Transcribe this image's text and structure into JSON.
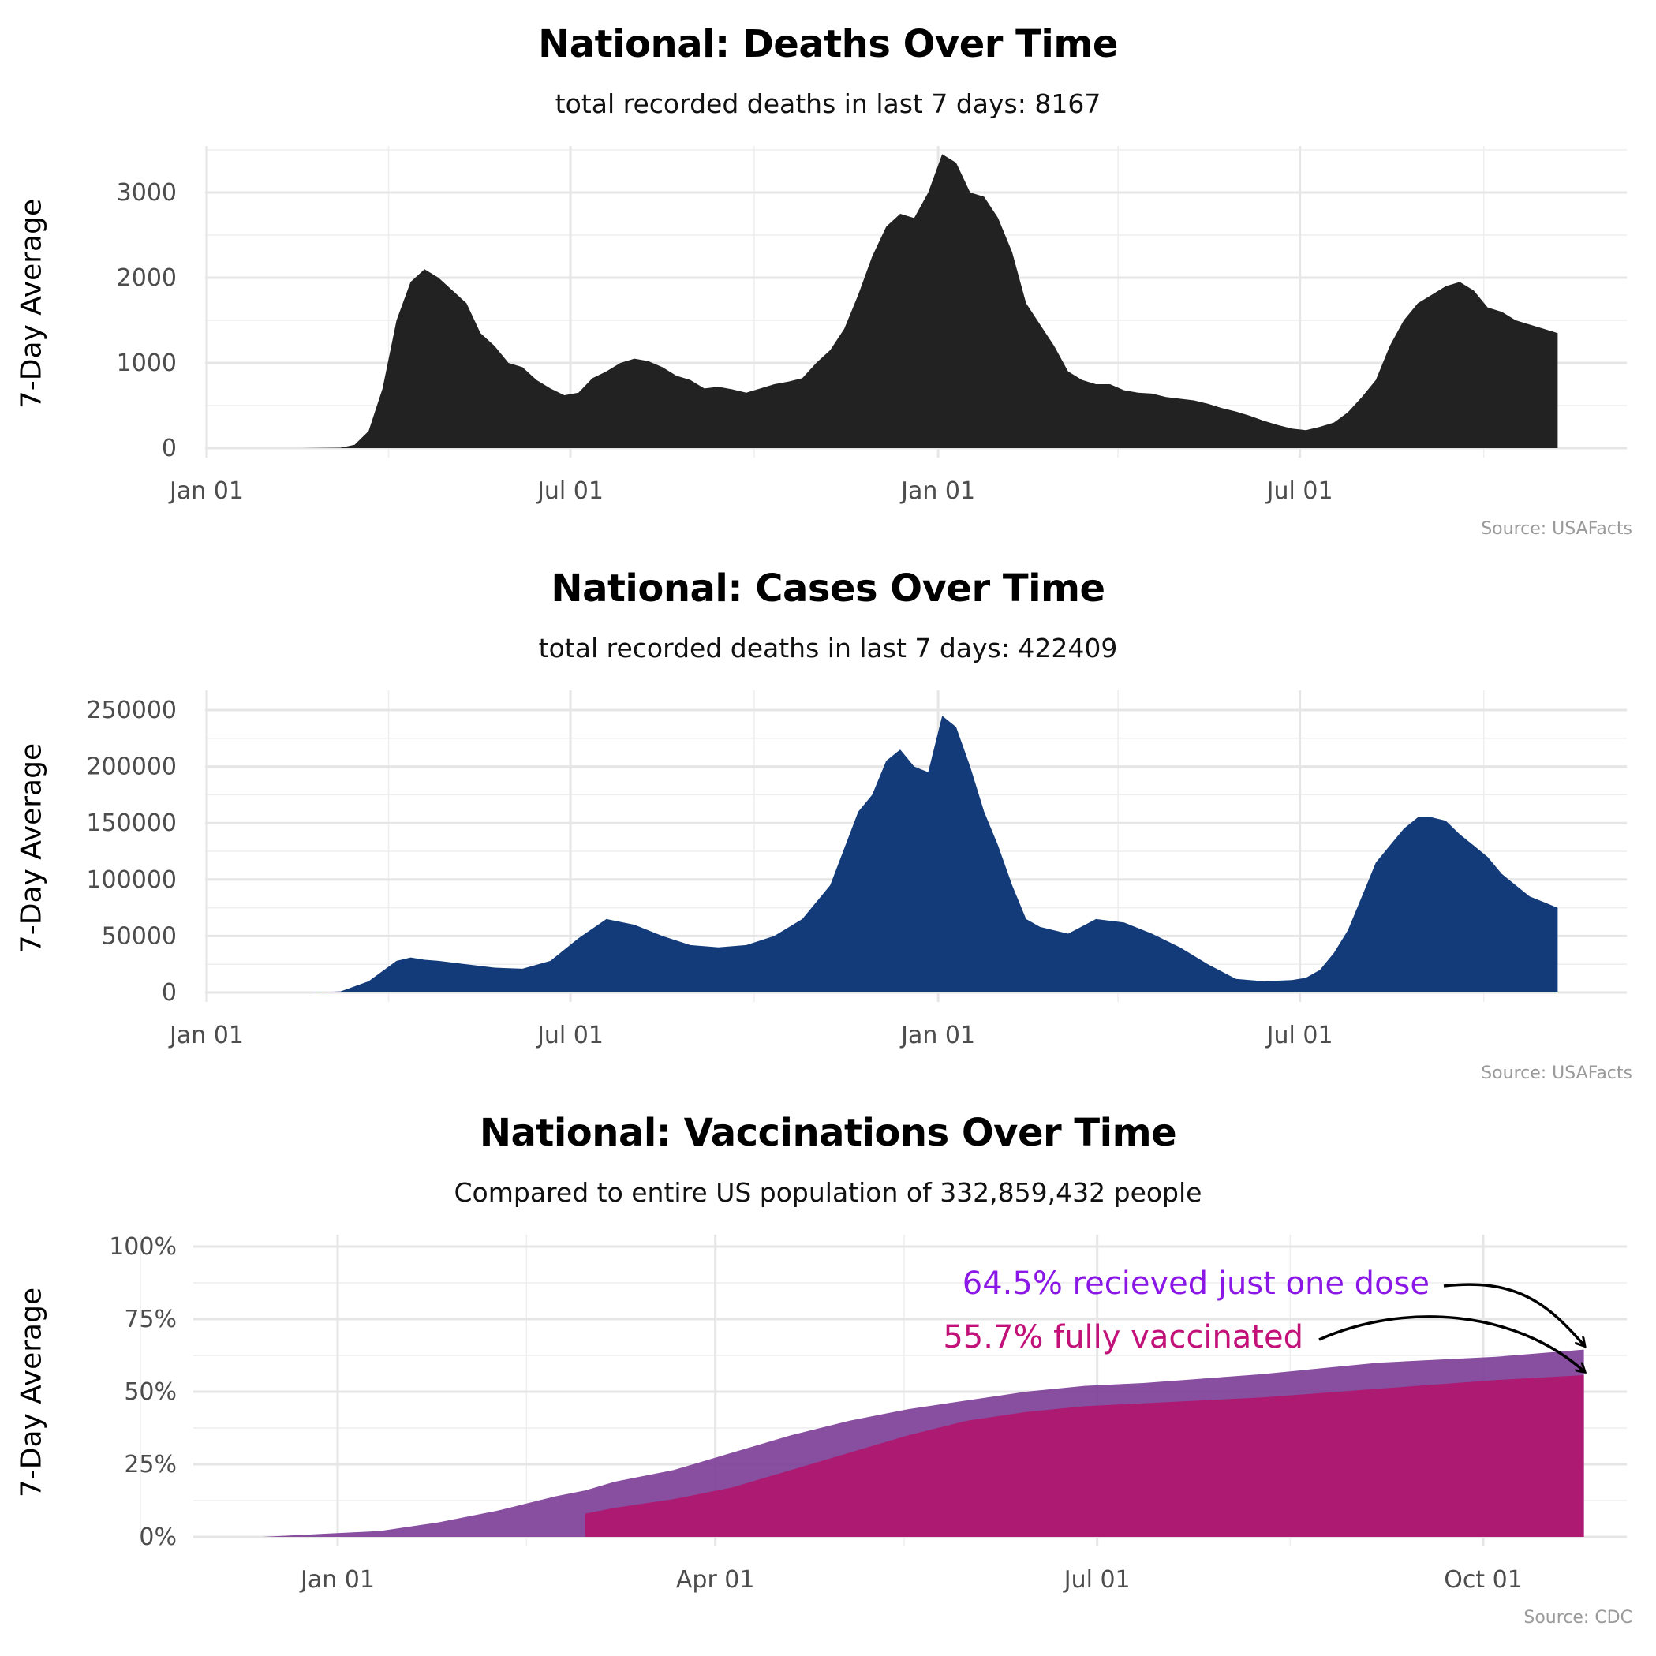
{
  "chart_data": [
    {
      "type": "area",
      "title": "National: Deaths Over Time",
      "subtitle": "total recorded deaths in last 7 days: 8167",
      "ylabel": "7-Day Average",
      "xlabel": "",
      "source": "Source: USAFacts",
      "color": "#222222",
      "x_ticks": [
        "Jan 01",
        "Jul 01",
        "Jan 01",
        "Jul 01"
      ],
      "x_range": [
        "2020-01-01",
        "2021-11-10"
      ],
      "y_ticks": [
        "0",
        "1000",
        "2000",
        "3000"
      ],
      "ylim": [
        0,
        3500
      ],
      "grid": true,
      "x": [
        "2020-01-01",
        "2020-02-15",
        "2020-03-08",
        "2020-03-15",
        "2020-03-22",
        "2020-03-29",
        "2020-04-05",
        "2020-04-12",
        "2020-04-19",
        "2020-04-26",
        "2020-05-03",
        "2020-05-10",
        "2020-05-17",
        "2020-05-24",
        "2020-05-31",
        "2020-06-07",
        "2020-06-14",
        "2020-06-21",
        "2020-06-28",
        "2020-07-05",
        "2020-07-12",
        "2020-07-19",
        "2020-07-26",
        "2020-08-02",
        "2020-08-09",
        "2020-08-16",
        "2020-08-23",
        "2020-08-30",
        "2020-09-06",
        "2020-09-13",
        "2020-09-20",
        "2020-09-27",
        "2020-10-04",
        "2020-10-11",
        "2020-10-18",
        "2020-10-25",
        "2020-11-01",
        "2020-11-08",
        "2020-11-15",
        "2020-11-22",
        "2020-11-29",
        "2020-12-06",
        "2020-12-13",
        "2020-12-20",
        "2020-12-27",
        "2021-01-03",
        "2021-01-10",
        "2021-01-17",
        "2021-01-24",
        "2021-01-31",
        "2021-02-07",
        "2021-02-14",
        "2021-02-21",
        "2021-02-28",
        "2021-03-07",
        "2021-03-14",
        "2021-03-21",
        "2021-03-28",
        "2021-04-04",
        "2021-04-11",
        "2021-04-18",
        "2021-04-25",
        "2021-05-02",
        "2021-05-09",
        "2021-05-16",
        "2021-05-23",
        "2021-05-30",
        "2021-06-06",
        "2021-06-13",
        "2021-06-20",
        "2021-06-27",
        "2021-07-04",
        "2021-07-11",
        "2021-07-18",
        "2021-07-25",
        "2021-08-01",
        "2021-08-08",
        "2021-08-15",
        "2021-08-22",
        "2021-08-29",
        "2021-09-05",
        "2021-09-12",
        "2021-09-19",
        "2021-09-26",
        "2021-10-03",
        "2021-10-10",
        "2021-10-17",
        "2021-10-24",
        "2021-10-31",
        "2021-11-07"
      ],
      "values": [
        0,
        0,
        5,
        40,
        200,
        700,
        1500,
        1950,
        2100,
        2000,
        1850,
        1700,
        1350,
        1200,
        1000,
        950,
        800,
        700,
        620,
        650,
        820,
        900,
        1000,
        1050,
        1020,
        950,
        850,
        800,
        700,
        720,
        690,
        650,
        700,
        750,
        780,
        820,
        1000,
        1150,
        1400,
        1800,
        2250,
        2600,
        2750,
        2700,
        3000,
        3450,
        3350,
        3000,
        2950,
        2700,
        2300,
        1700,
        1450,
        1200,
        900,
        800,
        750,
        750,
        680,
        650,
        640,
        600,
        580,
        560,
        520,
        470,
        430,
        380,
        320,
        270,
        230,
        210,
        250,
        300,
        420,
        600,
        800,
        1200,
        1500,
        1700,
        1800,
        1900,
        1950,
        1850,
        1650,
        1600,
        1500,
        1450,
        1400,
        1350
      ]
    },
    {
      "type": "area",
      "title": "National: Cases Over Time",
      "subtitle": "total recorded deaths in last 7 days: 422409",
      "ylabel": "7-Day Average",
      "xlabel": "",
      "source": "Source: USAFacts",
      "color": "#133b7a",
      "x_ticks": [
        "Jan 01",
        "Jul 01",
        "Jan 01",
        "Jul 01"
      ],
      "x_range": [
        "2020-01-01",
        "2021-11-10"
      ],
      "y_ticks": [
        "0",
        "50000",
        "100000",
        "150000",
        "200000",
        "250000"
      ],
      "ylim": [
        0,
        250000
      ],
      "grid": true,
      "x": [
        "2020-01-01",
        "2020-02-22",
        "2020-03-08",
        "2020-03-22",
        "2020-04-05",
        "2020-04-12",
        "2020-04-19",
        "2020-04-26",
        "2020-05-10",
        "2020-05-24",
        "2020-06-07",
        "2020-06-21",
        "2020-07-05",
        "2020-07-19",
        "2020-08-02",
        "2020-08-16",
        "2020-08-30",
        "2020-09-13",
        "2020-09-27",
        "2020-10-11",
        "2020-10-25",
        "2020-11-08",
        "2020-11-22",
        "2020-11-29",
        "2020-12-06",
        "2020-12-13",
        "2020-12-20",
        "2020-12-27",
        "2021-01-03",
        "2021-01-10",
        "2021-01-17",
        "2021-01-24",
        "2021-01-31",
        "2021-02-07",
        "2021-02-14",
        "2021-02-21",
        "2021-03-07",
        "2021-03-21",
        "2021-04-04",
        "2021-04-18",
        "2021-05-02",
        "2021-05-16",
        "2021-05-30",
        "2021-06-13",
        "2021-06-27",
        "2021-07-04",
        "2021-07-11",
        "2021-07-18",
        "2021-07-25",
        "2021-08-01",
        "2021-08-08",
        "2021-08-15",
        "2021-08-22",
        "2021-08-29",
        "2021-09-05",
        "2021-09-12",
        "2021-09-19",
        "2021-09-26",
        "2021-10-03",
        "2021-10-10",
        "2021-10-17",
        "2021-10-24",
        "2021-10-31",
        "2021-11-07"
      ],
      "values": [
        0,
        0,
        1000,
        10000,
        28000,
        31000,
        29000,
        28000,
        25000,
        22000,
        21000,
        28000,
        48000,
        65000,
        60000,
        50000,
        42000,
        40000,
        42000,
        50000,
        65000,
        95000,
        160000,
        175000,
        205000,
        215000,
        200000,
        195000,
        245000,
        235000,
        200000,
        160000,
        130000,
        95000,
        65000,
        58000,
        52000,
        65000,
        62000,
        52000,
        40000,
        25000,
        12000,
        10000,
        11000,
        13000,
        20000,
        35000,
        55000,
        85000,
        115000,
        130000,
        145000,
        155000,
        155000,
        152000,
        140000,
        130000,
        120000,
        105000,
        95000,
        85000,
        80000,
        75000
      ]
    },
    {
      "type": "area",
      "title": "National: Vaccinations Over Time",
      "subtitle": "Compared to entire US population of 332,859,432 people",
      "ylabel": "7-Day Average",
      "xlabel": "",
      "source": "Source: CDC",
      "x_ticks": [
        "Jan 01",
        "Apr 01",
        "Jul 01",
        "Oct 01"
      ],
      "x_range": [
        "2020-11-21",
        "2021-11-10"
      ],
      "y_ticks": [
        "0%",
        "25%",
        "50%",
        "75%",
        "100%"
      ],
      "ylim": [
        0,
        100
      ],
      "grid": true,
      "x": [
        "2020-12-14",
        "2020-12-28",
        "2021-01-11",
        "2021-01-25",
        "2021-02-08",
        "2021-02-22",
        "2021-03-01",
        "2021-03-08",
        "2021-03-22",
        "2021-04-05",
        "2021-04-19",
        "2021-05-03",
        "2021-05-17",
        "2021-05-31",
        "2021-06-14",
        "2021-06-28",
        "2021-07-12",
        "2021-08-09",
        "2021-09-06",
        "2021-10-04",
        "2021-10-25"
      ],
      "series": [
        {
          "name": "64.5% recieved just one dose",
          "color": "#7e3f98",
          "values": [
            0,
            1,
            2,
            5,
            9,
            14,
            16,
            19,
            23,
            29,
            35,
            40,
            44,
            47,
            50,
            52,
            53,
            56,
            60,
            62,
            64.5
          ]
        },
        {
          "name": "55.7% fully vaccinated",
          "color": "#b0166e",
          "start": "2021-03-01",
          "values": [
            null,
            null,
            null,
            null,
            null,
            null,
            8,
            10,
            13,
            17,
            23,
            29,
            35,
            40,
            43,
            45,
            46,
            48,
            51,
            54,
            55.7
          ]
        }
      ],
      "annotations": [
        {
          "text": "64.5% recieved just one dose",
          "color": "#8a17e6"
        },
        {
          "text": "55.7% fully vaccinated",
          "color": "#c2127a"
        }
      ]
    }
  ]
}
